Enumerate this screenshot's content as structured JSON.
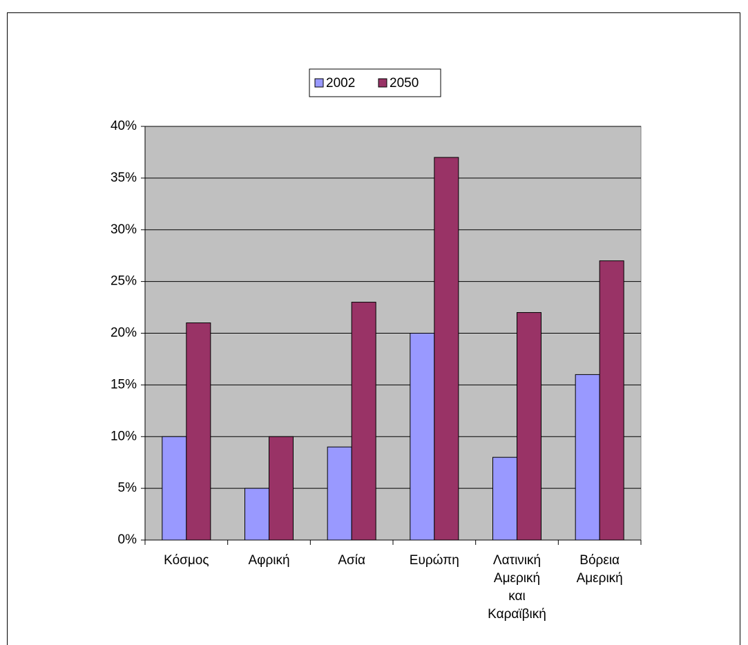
{
  "chart_data": {
    "type": "bar",
    "categories": [
      "Κόσμος",
      "Αφρική",
      "Ασία",
      "Ευρώπη",
      "Λατινική Αμερική και Καραϊβική",
      "Βόρεια Αμερική"
    ],
    "series": [
      {
        "name": "2002",
        "color": "#9999ff",
        "values": [
          10,
          5,
          9,
          20,
          8,
          16
        ]
      },
      {
        "name": "2050",
        "color": "#993366",
        "values": [
          21,
          10,
          23,
          37,
          22,
          27
        ]
      }
    ],
    "ylim": [
      0,
      40
    ],
    "yticks": [
      {
        "value": 0,
        "label": "0%"
      },
      {
        "value": 5,
        "label": "5%"
      },
      {
        "value": 10,
        "label": "10%"
      },
      {
        "value": 15,
        "label": "15%"
      },
      {
        "value": 20,
        "label": "20%"
      },
      {
        "value": 25,
        "label": "25%"
      },
      {
        "value": 30,
        "label": "30%"
      },
      {
        "value": 35,
        "label": "35%"
      },
      {
        "value": 40,
        "label": "40%"
      }
    ],
    "grid": true,
    "legend": "top"
  }
}
